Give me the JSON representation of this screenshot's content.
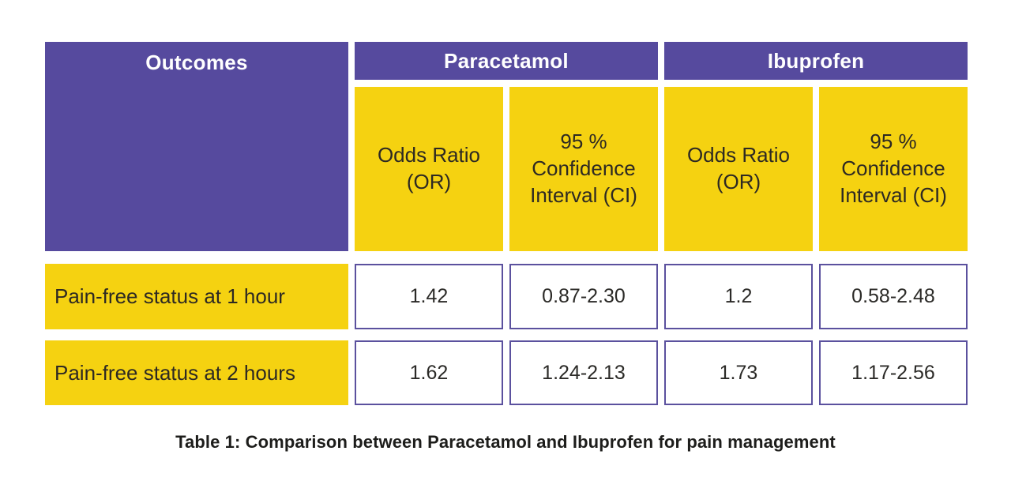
{
  "colors": {
    "purple": "#564a9e",
    "yellow": "#f5d211",
    "cell_border": "#5b519e",
    "dark_text": "#2d2923",
    "caption_text": "#1d1d1b"
  },
  "header": {
    "outcomes": "Outcomes",
    "groups": [
      "Paracetamol",
      "Ibuprofen"
    ],
    "subcolumns": [
      "Odds Ratio (OR)",
      "95 % Confidence Interval (CI)",
      "Odds Ratio (OR)",
      "95 % Confidence Interval (CI)"
    ]
  },
  "caption": "Table 1: Comparison between Paracetamol and Ibuprofen for pain management",
  "chart_data": {
    "type": "table",
    "title": "Table 1: Comparison between Paracetamol and Ibuprofen for pain management",
    "column_groups": [
      "Paracetamol",
      "Ibuprofen"
    ],
    "columns": [
      "Outcomes",
      "Paracetamol Odds Ratio (OR)",
      "Paracetamol 95 % Confidence Interval (CI)",
      "Ibuprofen Odds Ratio (OR)",
      "Ibuprofen 95 % Confidence Interval (CI)"
    ],
    "rows": [
      [
        "Pain-free status at 1 hour",
        "1.42",
        "0.87-2.30",
        "1.2",
        "0.58-2.48"
      ],
      [
        "Pain-free status at 2 hours",
        "1.62",
        "1.24-2.13",
        "1.73",
        "1.17-2.56"
      ]
    ]
  }
}
